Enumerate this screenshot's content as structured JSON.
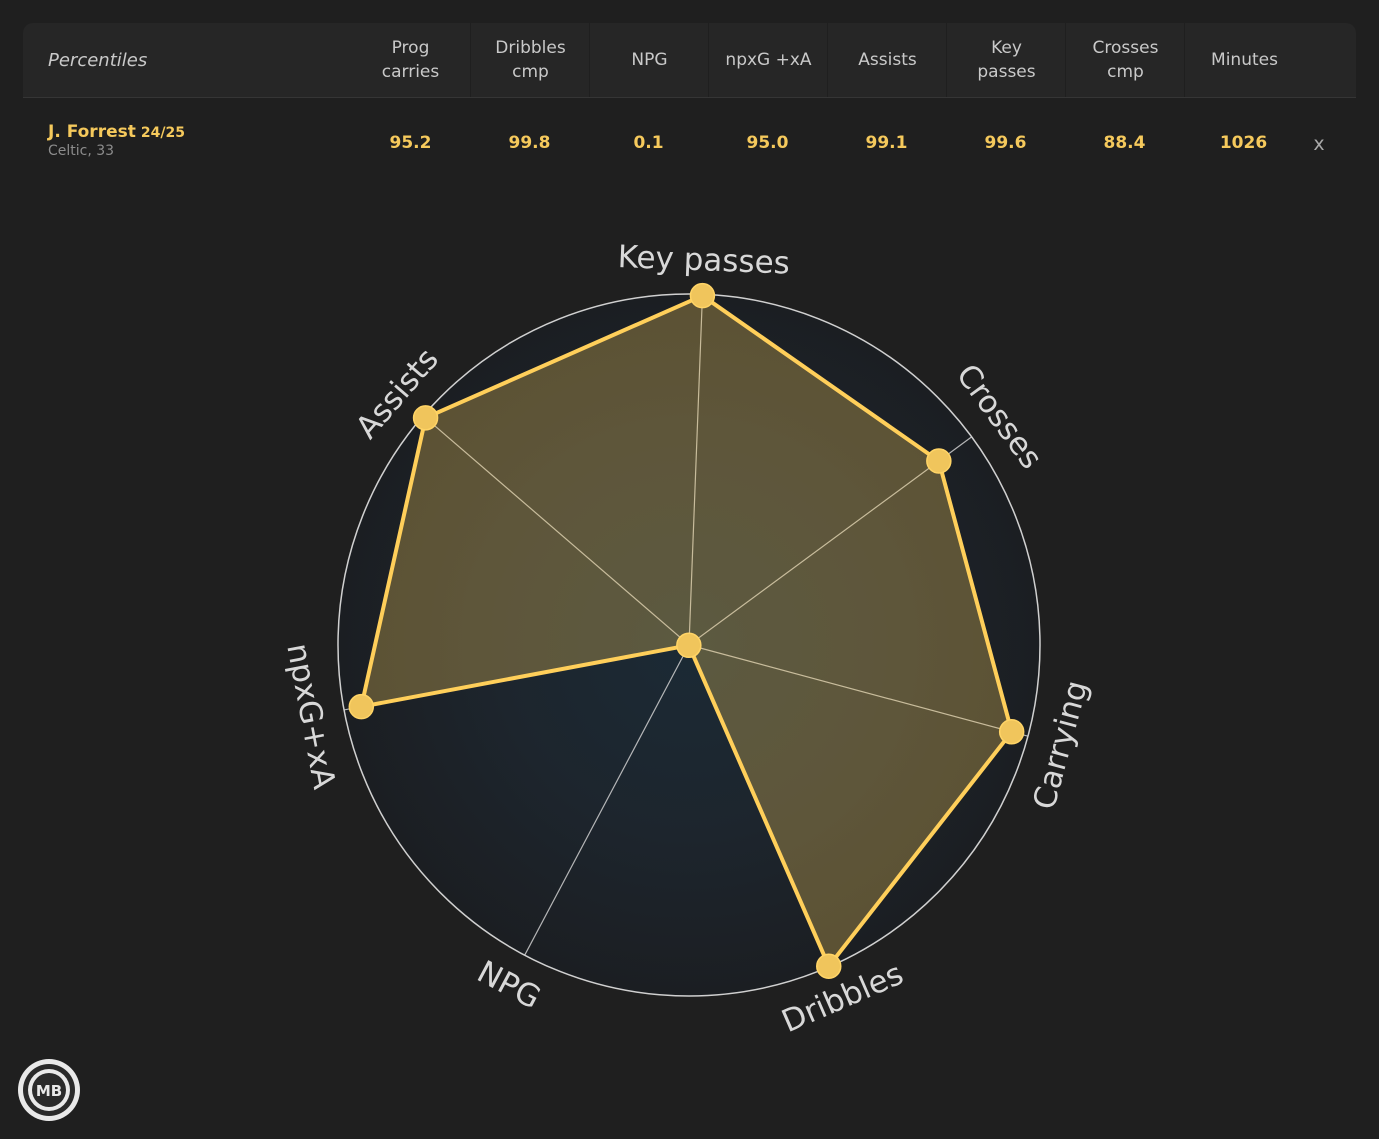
{
  "table": {
    "first_header": "Percentiles",
    "headers": [
      "Prog\ncarries",
      "Dribbles\ncmp",
      "NPG",
      "npxG +xA",
      "Assists",
      "Key\npasses",
      "Crosses\ncmp",
      "Minutes"
    ],
    "player": {
      "name": "J. Forrest",
      "season": "24/25",
      "subtitle": "Celtic, 33",
      "values": [
        "95.2",
        "99.8",
        "0.1",
        "95.0",
        "99.1",
        "99.6",
        "88.4",
        "1026"
      ],
      "remove_label": "x"
    }
  },
  "chart_data": {
    "type": "radar",
    "axes": [
      "Key passes",
      "Crosses",
      "Carrying",
      "Dribbles",
      "NPG",
      "npxG+xA",
      "Assists"
    ],
    "values": [
      99.6,
      88.4,
      95.2,
      99.8,
      0.1,
      95.0,
      99.1
    ],
    "range": [
      0,
      100
    ],
    "fill_color": "#f5c95c",
    "line_color": "#ffcf5a",
    "grid_color": "#d0d0d0",
    "background_color": "#1d2024"
  },
  "logo": {
    "text": "MB",
    "icon": "mb-badge-icon"
  }
}
